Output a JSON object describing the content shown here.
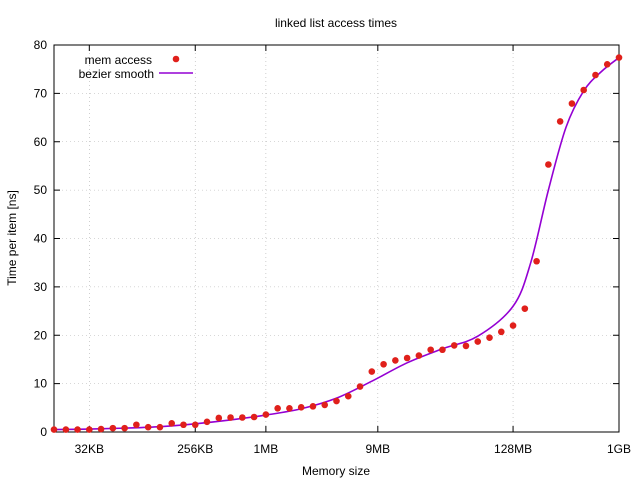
{
  "chart_data": {
    "type": "scatter",
    "title": "linked list access times",
    "xlabel": "Memory size",
    "ylabel": "Time per item [ns]",
    "x_scale": "log2",
    "x_units": "KB",
    "xlim": [
      16,
      1048576
    ],
    "ylim": [
      0,
      80
    ],
    "grid": true,
    "legend_position": "top-left",
    "x_ticks": [
      {
        "value": 32,
        "label": "32KB"
      },
      {
        "value": 256,
        "label": "256KB"
      },
      {
        "value": 1024,
        "label": "1MB"
      },
      {
        "value": 9216,
        "label": "9MB"
      },
      {
        "value": 131072,
        "label": "128MB"
      },
      {
        "value": 1048576,
        "label": "1GB"
      }
    ],
    "y_ticks": [
      0,
      10,
      20,
      30,
      40,
      50,
      60,
      70,
      80
    ],
    "series": [
      {
        "name": "mem access",
        "type": "scatter",
        "color": "#e0201b",
        "points": [
          [
            16,
            0.5
          ],
          [
            20.2,
            0.5
          ],
          [
            25.4,
            0.5
          ],
          [
            32,
            0.5
          ],
          [
            40.3,
            0.6
          ],
          [
            50.8,
            0.8
          ],
          [
            64,
            0.8
          ],
          [
            80.6,
            1.5
          ],
          [
            101.6,
            1.0
          ],
          [
            128,
            1.0
          ],
          [
            161.3,
            1.8
          ],
          [
            203.2,
            1.5
          ],
          [
            256,
            1.5
          ],
          [
            322.5,
            2.1
          ],
          [
            406.4,
            2.9
          ],
          [
            512,
            3.0
          ],
          [
            645.1,
            3.0
          ],
          [
            812.7,
            3.1
          ],
          [
            1024,
            3.6
          ],
          [
            1290.2,
            4.9
          ],
          [
            1625.5,
            4.9
          ],
          [
            2048,
            5.1
          ],
          [
            2580.3,
            5.3
          ],
          [
            3251.0,
            5.6
          ],
          [
            4096,
            6.4
          ],
          [
            5160.6,
            7.4
          ],
          [
            6502.0,
            9.4
          ],
          [
            8192,
            12.5
          ],
          [
            10321,
            14.0
          ],
          [
            13004,
            14.8
          ],
          [
            16384,
            15.3
          ],
          [
            20643,
            15.8
          ],
          [
            26008,
            17.0
          ],
          [
            32768,
            17.0
          ],
          [
            41285,
            17.9
          ],
          [
            52016,
            17.8
          ],
          [
            65536,
            18.7
          ],
          [
            82570,
            19.5
          ],
          [
            104032,
            20.7
          ],
          [
            131072,
            22.0
          ],
          [
            165140,
            25.5
          ],
          [
            208064,
            35.3
          ],
          [
            262144,
            55.3
          ],
          [
            330281,
            64.2
          ],
          [
            416128,
            67.9
          ],
          [
            524288,
            70.7
          ],
          [
            660562,
            73.8
          ],
          [
            832255,
            76.0
          ],
          [
            1048576,
            77.4
          ]
        ]
      },
      {
        "name": "bezier smooth",
        "type": "line",
        "color": "#9400d3",
        "points": [
          [
            16,
            0.5
          ],
          [
            32,
            0.6
          ],
          [
            64,
            0.8
          ],
          [
            128,
            1.1
          ],
          [
            256,
            1.7
          ],
          [
            512,
            2.5
          ],
          [
            1024,
            3.5
          ],
          [
            2048,
            4.8
          ],
          [
            4096,
            7.0
          ],
          [
            8192,
            10.5
          ],
          [
            16384,
            14.3
          ],
          [
            32768,
            17.2
          ],
          [
            65536,
            19.8
          ],
          [
            131072,
            26.0
          ],
          [
            185363,
            35.0
          ],
          [
            262144,
            50.0
          ],
          [
            370727,
            63.0
          ],
          [
            524288,
            70.5
          ],
          [
            741455,
            74.5
          ],
          [
            1048576,
            77.4
          ]
        ]
      }
    ]
  }
}
